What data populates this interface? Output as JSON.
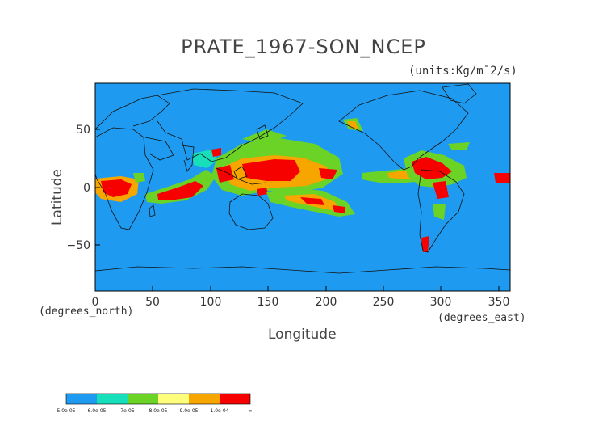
{
  "title": "PRATE_1967-SON_NCEP",
  "units": "(units:Kg/m¯2/s)",
  "axes": {
    "xlabel": "Longitude",
    "ylabel": "Latitude",
    "x_unit_note": "(degrees_east)",
    "y_unit_note": "(degrees_north)",
    "x_ticks": [
      "0",
      "50",
      "100",
      "150",
      "200",
      "250",
      "300",
      "350"
    ],
    "y_ticks": [
      "50",
      "0",
      "−50"
    ]
  },
  "legend": {
    "labels": [
      "5.0e-05",
      "6.0e-05",
      "7e-05",
      "8.0e-05",
      "9.0e-05",
      "1.0e-04",
      "∞"
    ],
    "colors": [
      "#1e9bf0",
      "#16dfb9",
      "#6ad326",
      "#ffff7d",
      "#f7a600",
      "#f60000"
    ]
  },
  "map": {
    "projection": "equirectangular",
    "lon_range": [
      0,
      360
    ],
    "lat_range": [
      -90,
      90
    ],
    "background_color": "#1e9bf0"
  }
}
